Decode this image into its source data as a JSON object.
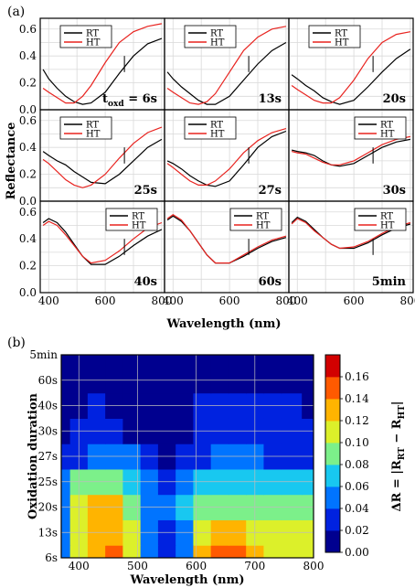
{
  "figure": {
    "label_a": "(a)",
    "label_b": "(b)"
  },
  "chart_data": [
    {
      "type": "line",
      "xlabel": "Wavelength (nm)",
      "ylabel": "Reflectance",
      "xlim": [
        370,
        810
      ],
      "ylim": [
        0,
        0.68
      ],
      "xticks": [
        "400",
        "600",
        "800"
      ],
      "yticks": [
        "0.0",
        "0.2",
        "0.4",
        "0.6"
      ],
      "grid": true,
      "legend": [
        "RT",
        "HT"
      ],
      "series_colors": {
        "RT": "#000000",
        "HT": "#e8231f"
      },
      "panels": [
        {
          "label": "t",
          "label_sub": "oxd",
          "label_suffix": " = 6s",
          "legend_position": "top-left",
          "series": [
            {
              "name": "RT",
              "x": [
                380,
                400,
                430,
                460,
                490,
                520,
                550,
                600,
                650,
                700,
                750,
                800
              ],
              "y": [
                0.3,
                0.23,
                0.16,
                0.1,
                0.06,
                0.04,
                0.05,
                0.13,
                0.27,
                0.4,
                0.49,
                0.53
              ]
            },
            {
              "name": "HT",
              "x": [
                380,
                400,
                430,
                460,
                490,
                520,
                550,
                600,
                650,
                700,
                750,
                800
              ],
              "y": [
                0.16,
                0.13,
                0.09,
                0.05,
                0.05,
                0.1,
                0.18,
                0.35,
                0.5,
                0.58,
                0.62,
                0.64
              ]
            }
          ]
        },
        {
          "label": "13s",
          "legend_position": "top-left",
          "series": [
            {
              "name": "RT",
              "x": [
                380,
                400,
                430,
                460,
                490,
                520,
                550,
                600,
                650,
                700,
                750,
                800
              ],
              "y": [
                0.28,
                0.23,
                0.17,
                0.12,
                0.07,
                0.04,
                0.04,
                0.1,
                0.22,
                0.34,
                0.44,
                0.5
              ]
            },
            {
              "name": "HT",
              "x": [
                380,
                400,
                430,
                460,
                490,
                520,
                550,
                600,
                650,
                700,
                750,
                800
              ],
              "y": [
                0.16,
                0.13,
                0.09,
                0.05,
                0.04,
                0.06,
                0.12,
                0.28,
                0.44,
                0.54,
                0.6,
                0.62
              ]
            }
          ]
        },
        {
          "label": "20s",
          "legend_position": "top-left",
          "series": [
            {
              "name": "RT",
              "x": [
                380,
                400,
                430,
                460,
                490,
                520,
                550,
                600,
                650,
                700,
                750,
                800
              ],
              "y": [
                0.26,
                0.23,
                0.18,
                0.14,
                0.09,
                0.06,
                0.04,
                0.07,
                0.17,
                0.28,
                0.38,
                0.45
              ]
            },
            {
              "name": "HT",
              "x": [
                380,
                400,
                430,
                460,
                490,
                520,
                550,
                600,
                650,
                700,
                750,
                800
              ],
              "y": [
                0.18,
                0.15,
                0.11,
                0.07,
                0.05,
                0.05,
                0.09,
                0.22,
                0.38,
                0.5,
                0.56,
                0.58
              ]
            }
          ]
        },
        {
          "label": "25s",
          "legend_position": "top-left",
          "series": [
            {
              "name": "RT",
              "x": [
                380,
                400,
                430,
                460,
                490,
                520,
                550,
                600,
                650,
                700,
                750,
                800
              ],
              "y": [
                0.37,
                0.34,
                0.3,
                0.27,
                0.22,
                0.18,
                0.14,
                0.13,
                0.2,
                0.3,
                0.4,
                0.46
              ]
            },
            {
              "name": "HT",
              "x": [
                380,
                400,
                430,
                460,
                490,
                520,
                550,
                600,
                650,
                700,
                750,
                800
              ],
              "y": [
                0.31,
                0.28,
                0.22,
                0.16,
                0.12,
                0.1,
                0.12,
                0.2,
                0.32,
                0.43,
                0.51,
                0.55
              ]
            }
          ]
        },
        {
          "label": "27s",
          "legend_position": "top-left",
          "series": [
            {
              "name": "RT",
              "x": [
                380,
                400,
                430,
                460,
                490,
                520,
                550,
                600,
                650,
                700,
                750,
                800
              ],
              "y": [
                0.3,
                0.28,
                0.24,
                0.19,
                0.15,
                0.12,
                0.11,
                0.15,
                0.27,
                0.4,
                0.48,
                0.52
              ]
            },
            {
              "name": "HT",
              "x": [
                380,
                400,
                430,
                460,
                490,
                520,
                550,
                600,
                650,
                700,
                750,
                800
              ],
              "y": [
                0.28,
                0.25,
                0.2,
                0.15,
                0.12,
                0.12,
                0.15,
                0.24,
                0.36,
                0.45,
                0.51,
                0.54
              ]
            }
          ]
        },
        {
          "label": "30s",
          "legend_position": "top-right",
          "series": [
            {
              "name": "RT",
              "x": [
                380,
                400,
                430,
                460,
                490,
                520,
                550,
                600,
                650,
                700,
                750,
                800
              ],
              "y": [
                0.38,
                0.37,
                0.36,
                0.34,
                0.3,
                0.27,
                0.26,
                0.28,
                0.34,
                0.4,
                0.44,
                0.46
              ]
            },
            {
              "name": "HT",
              "x": [
                380,
                400,
                430,
                460,
                490,
                520,
                550,
                600,
                650,
                700,
                750,
                800
              ],
              "y": [
                0.37,
                0.36,
                0.35,
                0.32,
                0.29,
                0.27,
                0.27,
                0.3,
                0.36,
                0.42,
                0.46,
                0.48
              ]
            }
          ]
        },
        {
          "label": "40s",
          "legend_position": "top-right",
          "series": [
            {
              "name": "RT",
              "x": [
                380,
                400,
                430,
                460,
                490,
                520,
                550,
                600,
                650,
                700,
                750,
                800
              ],
              "y": [
                0.52,
                0.55,
                0.52,
                0.45,
                0.36,
                0.27,
                0.21,
                0.21,
                0.27,
                0.35,
                0.42,
                0.47
              ]
            },
            {
              "name": "HT",
              "x": [
                380,
                400,
                430,
                460,
                490,
                520,
                550,
                600,
                650,
                700,
                750,
                800
              ],
              "y": [
                0.5,
                0.53,
                0.5,
                0.43,
                0.35,
                0.27,
                0.22,
                0.24,
                0.31,
                0.4,
                0.48,
                0.52
              ]
            }
          ]
        },
        {
          "label": "60s",
          "legend_position": "top-right",
          "series": [
            {
              "name": "RT",
              "x": [
                380,
                400,
                430,
                460,
                490,
                520,
                550,
                600,
                650,
                700,
                750,
                800
              ],
              "y": [
                0.54,
                0.57,
                0.53,
                0.46,
                0.37,
                0.28,
                0.22,
                0.22,
                0.27,
                0.33,
                0.38,
                0.41
              ]
            },
            {
              "name": "HT",
              "x": [
                380,
                400,
                430,
                460,
                490,
                520,
                550,
                600,
                650,
                700,
                750,
                800
              ],
              "y": [
                0.55,
                0.58,
                0.54,
                0.46,
                0.37,
                0.28,
                0.22,
                0.22,
                0.28,
                0.34,
                0.39,
                0.42
              ]
            }
          ]
        },
        {
          "label": "5min",
          "legend_position": "top-right",
          "series": [
            {
              "name": "RT",
              "x": [
                380,
                400,
                430,
                460,
                490,
                520,
                550,
                600,
                650,
                700,
                750,
                800
              ],
              "y": [
                0.52,
                0.56,
                0.53,
                0.47,
                0.41,
                0.36,
                0.33,
                0.33,
                0.37,
                0.43,
                0.48,
                0.51
              ]
            },
            {
              "name": "HT",
              "x": [
                380,
                400,
                430,
                460,
                490,
                520,
                550,
                600,
                650,
                700,
                750,
                800
              ],
              "y": [
                0.51,
                0.55,
                0.52,
                0.46,
                0.41,
                0.36,
                0.33,
                0.34,
                0.38,
                0.44,
                0.49,
                0.52
              ]
            }
          ]
        }
      ]
    },
    {
      "type": "heatmap",
      "xlabel": "Wavelength (nm)",
      "ylabel": "Oxidation duration",
      "colorbar_label_prefix": "ΔR = |R",
      "colorbar_sub_1": "RT",
      "colorbar_mid": " − R",
      "colorbar_sub_2": "HT",
      "colorbar_suffix": "|",
      "xlim": [
        370,
        800
      ],
      "xticks": [
        "400",
        "500",
        "600",
        "700",
        "800"
      ],
      "yticks": [
        "6s",
        "13s",
        "20s",
        "25s",
        "27s",
        "30s",
        "40s",
        "60s",
        "5min"
      ],
      "colorbar_ticks": [
        "0.00",
        "0.02",
        "0.04",
        "0.06",
        "0.08",
        "0.10",
        "0.12",
        "0.14",
        "0.16"
      ],
      "colorbar_colors": [
        "#00008f",
        "#0022e0",
        "#0074ff",
        "#18c8f0",
        "#7cf08a",
        "#dcf02a",
        "#ffb400",
        "#ff5a00",
        "#d20000"
      ],
      "grid": true,
      "x": [
        370,
        400,
        430,
        460,
        490,
        520,
        550,
        580,
        610,
        640,
        670,
        700,
        730,
        760,
        800
      ],
      "rows": {
        "6s": [
          0.04,
          0.1,
          0.13,
          0.14,
          0.1,
          0.05,
          0.02,
          0.05,
          0.12,
          0.14,
          0.14,
          0.12,
          0.11,
          0.11,
          0.11
        ],
        "13s": [
          0.05,
          0.11,
          0.13,
          0.13,
          0.1,
          0.05,
          0.03,
          0.05,
          0.11,
          0.13,
          0.13,
          0.11,
          0.1,
          0.1,
          0.1
        ],
        "20s": [
          0.05,
          0.1,
          0.12,
          0.12,
          0.08,
          0.04,
          0.04,
          0.06,
          0.08,
          0.09,
          0.09,
          0.09,
          0.09,
          0.09,
          0.09
        ],
        "25s": [
          0.05,
          0.08,
          0.09,
          0.08,
          0.06,
          0.05,
          0.03,
          0.04,
          0.06,
          0.07,
          0.07,
          0.07,
          0.07,
          0.06,
          0.06
        ],
        "27s": [
          0.02,
          0.03,
          0.04,
          0.04,
          0.04,
          0.02,
          0.01,
          0.02,
          0.03,
          0.04,
          0.04,
          0.04,
          0.03,
          0.03,
          0.03
        ],
        "30s": [
          0.01,
          0.02,
          0.02,
          0.02,
          0.01,
          0.01,
          0.01,
          0.01,
          0.02,
          0.02,
          0.02,
          0.02,
          0.02,
          0.02,
          0.02
        ],
        "40s": [
          0.01,
          0.01,
          0.02,
          0.01,
          0.01,
          0.01,
          0.01,
          0.01,
          0.02,
          0.02,
          0.02,
          0.02,
          0.02,
          0.02,
          0.01
        ],
        "60s": [
          0.01,
          0.01,
          0.01,
          0.01,
          0.0,
          0.0,
          0.0,
          0.0,
          0.01,
          0.01,
          0.01,
          0.01,
          0.01,
          0.01,
          0.0
        ],
        "5min": [
          0.01,
          0.01,
          0.01,
          0.01,
          0.0,
          0.0,
          0.0,
          0.0,
          0.01,
          0.01,
          0.01,
          0.01,
          0.01,
          0.01,
          0.0
        ]
      }
    }
  ]
}
